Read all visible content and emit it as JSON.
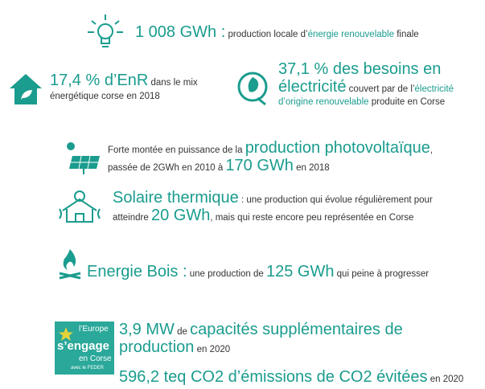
{
  "items": [
    {
      "parts": [
        "1 008 GWh :",
        " production locale d’",
        "énergie renouvelable",
        " finale"
      ]
    },
    {
      "parts": [
        "17,4 % d’EnR",
        " dans le mix énergétique corse en 2018"
      ]
    },
    {
      "parts": [
        "37,1 % des besoins en électricité",
        " couvert par de l’",
        "électricité d’origine renouvelable",
        " produite en Corse"
      ]
    },
    {
      "parts": [
        "Forte montée en puissance de la ",
        "production photovoltaïque",
        ", passée de 2GWh en 2010 à ",
        "170 GWh",
        " en 2018"
      ]
    },
    {
      "parts": [
        "Solaire thermique",
        " : une production qui évolue régulièrement pour atteindre ",
        "20 GWh",
        ", mais qui reste encore peu représentée en Corse"
      ]
    },
    {
      "parts": [
        "Energie Bois :",
        " une production de ",
        "125 GWh",
        " qui peine à progresser"
      ]
    },
    {
      "parts": [
        "3,9 MW",
        " de ",
        "capacités supplémentaires de production",
        " en 2020"
      ]
    },
    {
      "parts": [
        "596,2 teq CO2 d’émissions de CO2 évitées",
        " en 2020"
      ]
    }
  ],
  "logo": {
    "line1": "l’Europe",
    "line2": "s’engage",
    "line3": "en Corse",
    "line4": "avec le FEDER"
  }
}
